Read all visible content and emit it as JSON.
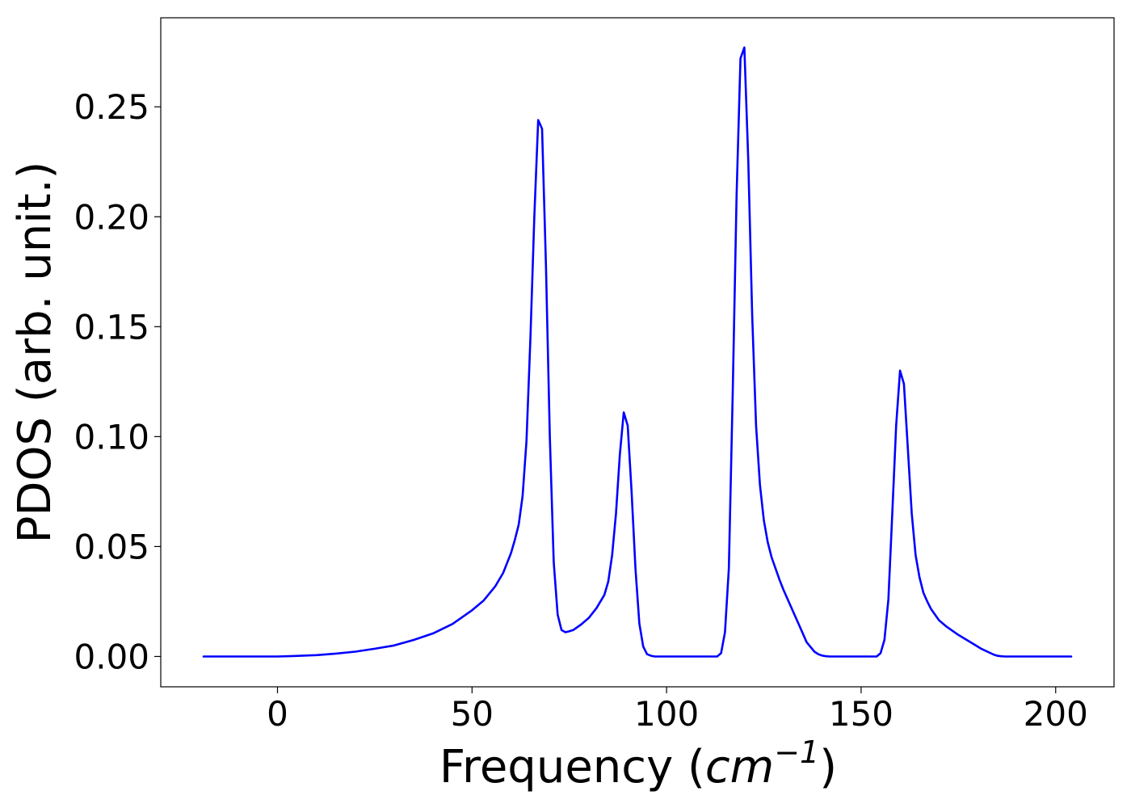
{
  "chart_data": {
    "type": "line",
    "title": "",
    "xlabel": "Frequency",
    "xlabel_unit": "cm",
    "xlabel_exponent": "−1",
    "ylabel": "PDOS (arb. unit.)",
    "xlim": [
      -30,
      215
    ],
    "ylim": [
      -0.0138,
      0.2905
    ],
    "x_ticks": [
      0,
      50,
      100,
      150,
      200
    ],
    "x_tick_labels": [
      "0",
      "50",
      "100",
      "150",
      "200"
    ],
    "y_ticks": [
      0.0,
      0.05,
      0.1,
      0.15,
      0.2,
      0.25
    ],
    "y_tick_labels": [
      "0.00",
      "0.05",
      "0.10",
      "0.15",
      "0.20",
      "0.25"
    ],
    "grid": false,
    "legend": "none",
    "series": [
      {
        "color": "#0000ff",
        "x": [
          -19,
          -10,
          0,
          4,
          10,
          15,
          20,
          25,
          30,
          35,
          40,
          45,
          50,
          53,
          56,
          58,
          60,
          61,
          62,
          63,
          64,
          65,
          66,
          67,
          68,
          69,
          70,
          71,
          72,
          73,
          74,
          75,
          76,
          78,
          80,
          82,
          84,
          85,
          86,
          87,
          88,
          89,
          90,
          91,
          92,
          93,
          94,
          95,
          96,
          97,
          98,
          100,
          105,
          110,
          113,
          114,
          115,
          116,
          117,
          118,
          119,
          120,
          121,
          122,
          123,
          124,
          125,
          126,
          127,
          128,
          129,
          130,
          132,
          134,
          136,
          138,
          139,
          140,
          141,
          142,
          143,
          145,
          150,
          154,
          155,
          156,
          157,
          158,
          159,
          160,
          161,
          162,
          163,
          164,
          165,
          166,
          167,
          168,
          170,
          172,
          175,
          178,
          181,
          184,
          185,
          186,
          187,
          188,
          190,
          195,
          200,
          204
        ],
        "y": [
          0.0,
          0.0,
          0.0,
          0.0002,
          0.0006,
          0.0013,
          0.0022,
          0.0035,
          0.005,
          0.0075,
          0.0105,
          0.0148,
          0.021,
          0.0255,
          0.032,
          0.038,
          0.047,
          0.053,
          0.06,
          0.073,
          0.098,
          0.145,
          0.2,
          0.244,
          0.24,
          0.178,
          0.1,
          0.043,
          0.019,
          0.012,
          0.011,
          0.0115,
          0.012,
          0.0145,
          0.0175,
          0.022,
          0.028,
          0.034,
          0.046,
          0.065,
          0.092,
          0.111,
          0.105,
          0.075,
          0.04,
          0.015,
          0.0045,
          0.001,
          0.0003,
          0.0,
          0.0,
          0.0,
          0.0,
          0.0,
          0.0,
          0.0015,
          0.011,
          0.04,
          0.12,
          0.21,
          0.272,
          0.277,
          0.225,
          0.155,
          0.105,
          0.078,
          0.062,
          0.052,
          0.045,
          0.04,
          0.035,
          0.0305,
          0.0225,
          0.0145,
          0.0065,
          0.0022,
          0.001,
          0.0004,
          0.0001,
          0.0,
          0.0,
          0.0,
          0.0,
          0.0,
          0.0015,
          0.0075,
          0.026,
          0.065,
          0.105,
          0.13,
          0.124,
          0.095,
          0.065,
          0.046,
          0.036,
          0.029,
          0.025,
          0.0215,
          0.0165,
          0.0135,
          0.0098,
          0.0066,
          0.0034,
          0.0009,
          0.0003,
          0.0001,
          0.0,
          0.0,
          0.0,
          0.0,
          0.0,
          0.0
        ]
      }
    ]
  }
}
